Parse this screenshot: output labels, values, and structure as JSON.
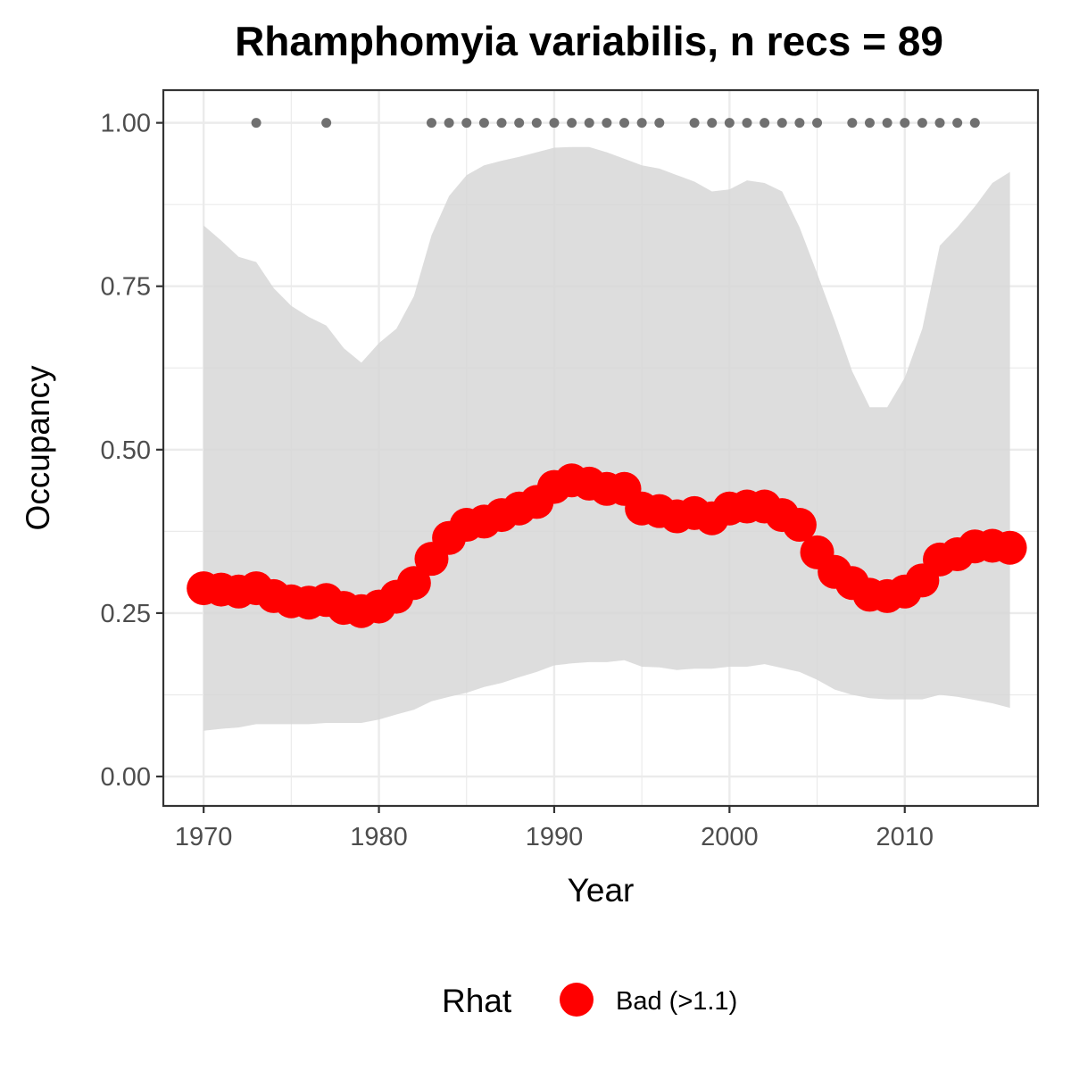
{
  "chart_data": {
    "type": "line",
    "title": "Rhamphomyia variabilis, n recs = 89",
    "xlabel": "Year",
    "ylabel": "Occupancy",
    "xlim": [
      1967.7,
      2017.6
    ],
    "ylim": [
      -0.045,
      1.05
    ],
    "x_ticks": [
      1970,
      1980,
      1990,
      2000,
      2010
    ],
    "y_ticks": [
      0.0,
      0.25,
      0.5,
      0.75,
      1.0
    ],
    "x_tick_labels": [
      "1970",
      "1980",
      "1990",
      "2000",
      "2010"
    ],
    "y_tick_labels": [
      "0.00",
      "0.25",
      "0.50",
      "0.75",
      "1.00"
    ],
    "grid": true,
    "legend_position": "bottom",
    "legend": {
      "title": "Rhat",
      "entries": [
        {
          "label": "Bad (>1.1)",
          "color": "#ff0000"
        }
      ]
    },
    "colors": {
      "points": "#ff0000",
      "ribbon": "#d6d6d6",
      "records": "#707070",
      "panel_border": "#333333"
    },
    "years": [
      1970,
      1971,
      1972,
      1973,
      1974,
      1975,
      1976,
      1977,
      1978,
      1979,
      1980,
      1981,
      1982,
      1983,
      1984,
      1985,
      1986,
      1987,
      1988,
      1989,
      1990,
      1991,
      1992,
      1993,
      1994,
      1995,
      1996,
      1997,
      1998,
      1999,
      2000,
      2001,
      2002,
      2003,
      2004,
      2005,
      2006,
      2007,
      2008,
      2009,
      2010,
      2011,
      2012,
      2013,
      2014,
      2015,
      2016
    ],
    "occupancy": [
      0.288,
      0.286,
      0.283,
      0.288,
      0.276,
      0.268,
      0.266,
      0.27,
      0.258,
      0.253,
      0.26,
      0.275,
      0.296,
      0.333,
      0.365,
      0.385,
      0.39,
      0.4,
      0.41,
      0.42,
      0.443,
      0.453,
      0.448,
      0.44,
      0.44,
      0.41,
      0.406,
      0.398,
      0.403,
      0.395,
      0.41,
      0.413,
      0.413,
      0.4,
      0.385,
      0.343,
      0.313,
      0.296,
      0.278,
      0.276,
      0.283,
      0.3,
      0.332,
      0.34,
      0.352,
      0.353,
      0.35
    ],
    "lower_ci": [
      0.07,
      0.073,
      0.075,
      0.08,
      0.08,
      0.08,
      0.08,
      0.082,
      0.082,
      0.082,
      0.087,
      0.095,
      0.102,
      0.115,
      0.122,
      0.128,
      0.137,
      0.143,
      0.152,
      0.16,
      0.17,
      0.173,
      0.175,
      0.175,
      0.178,
      0.168,
      0.167,
      0.163,
      0.165,
      0.165,
      0.168,
      0.168,
      0.172,
      0.166,
      0.16,
      0.148,
      0.133,
      0.125,
      0.12,
      0.118,
      0.118,
      0.118,
      0.125,
      0.122,
      0.117,
      0.112,
      0.105
    ],
    "upper_ci": [
      0.843,
      0.82,
      0.795,
      0.787,
      0.747,
      0.72,
      0.703,
      0.69,
      0.655,
      0.633,
      0.663,
      0.685,
      0.735,
      0.828,
      0.888,
      0.92,
      0.935,
      0.942,
      0.948,
      0.955,
      0.962,
      0.963,
      0.963,
      0.955,
      0.945,
      0.935,
      0.93,
      0.92,
      0.91,
      0.895,
      0.898,
      0.912,
      0.908,
      0.895,
      0.84,
      0.77,
      0.697,
      0.62,
      0.565,
      0.565,
      0.61,
      0.685,
      0.812,
      0.84,
      0.872,
      0.908,
      0.925
    ],
    "record_years": [
      1973,
      1977,
      1983,
      1984,
      1985,
      1986,
      1987,
      1988,
      1989,
      1990,
      1991,
      1992,
      1993,
      1994,
      1995,
      1996,
      1998,
      1999,
      2000,
      2001,
      2002,
      2003,
      2004,
      2005,
      2007,
      2008,
      2009,
      2010,
      2011,
      2012,
      2013,
      2014
    ],
    "record_value": 1.0
  }
}
